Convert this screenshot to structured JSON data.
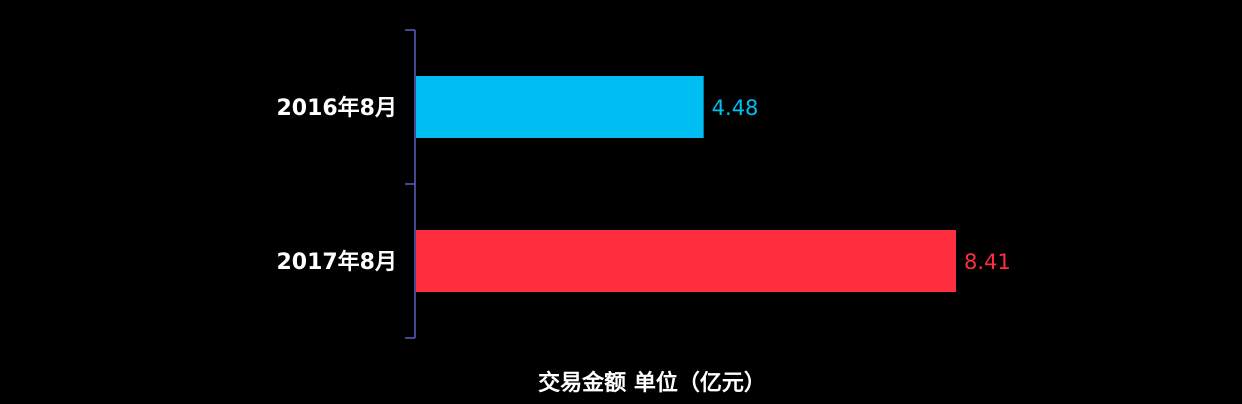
{
  "chart_data": {
    "type": "bar",
    "orientation": "horizontal",
    "categories": [
      "2016年8月",
      "2017年8月"
    ],
    "values": [
      4.48,
      8.41
    ],
    "value_labels": [
      "4.48",
      "8.41"
    ],
    "bar_colors": [
      "#00bef2",
      "#fe2e3e"
    ],
    "xlabel": "交易金额 单位（亿元）",
    "ylabel": "",
    "xlim": [
      0,
      8.41
    ],
    "axis_color": "#5b5fc7",
    "grid": false,
    "legend": "none"
  }
}
